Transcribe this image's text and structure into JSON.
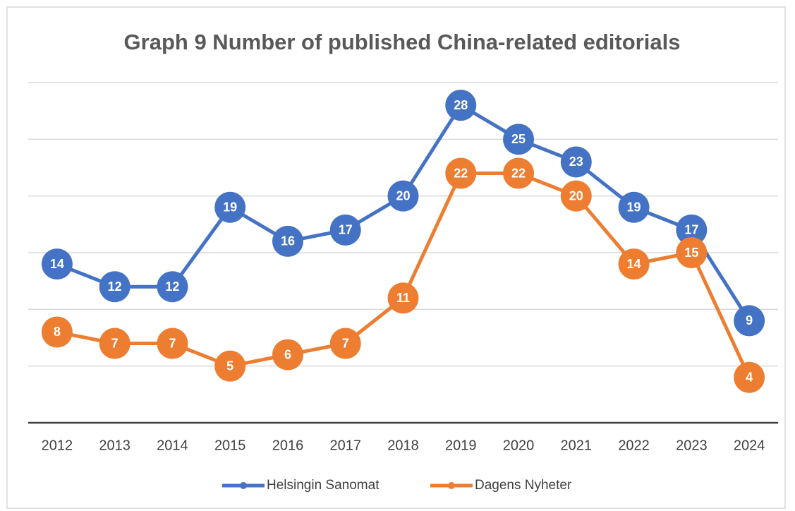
{
  "chart_data": {
    "type": "line",
    "title": "Graph 9 Number of published China-related editorials",
    "categories": [
      "2012",
      "2013",
      "2014",
      "2015",
      "2016",
      "2017",
      "2018",
      "2019",
      "2020",
      "2021",
      "2022",
      "2023",
      "2024"
    ],
    "series": [
      {
        "name": "Helsingin Sanomat",
        "color": "#4472c4",
        "values": [
          14,
          12,
          12,
          19,
          16,
          17,
          20,
          28,
          25,
          23,
          19,
          17,
          9
        ]
      },
      {
        "name": "Dagens Nyheter",
        "color": "#ed7d31",
        "values": [
          8,
          7,
          7,
          5,
          6,
          7,
          11,
          22,
          22,
          20,
          14,
          15,
          4
        ]
      }
    ],
    "ylim": [
      0,
      30
    ],
    "yticks": [
      0,
      5,
      10,
      15,
      20,
      25,
      30
    ],
    "grid": true,
    "legend": "bottom"
  }
}
